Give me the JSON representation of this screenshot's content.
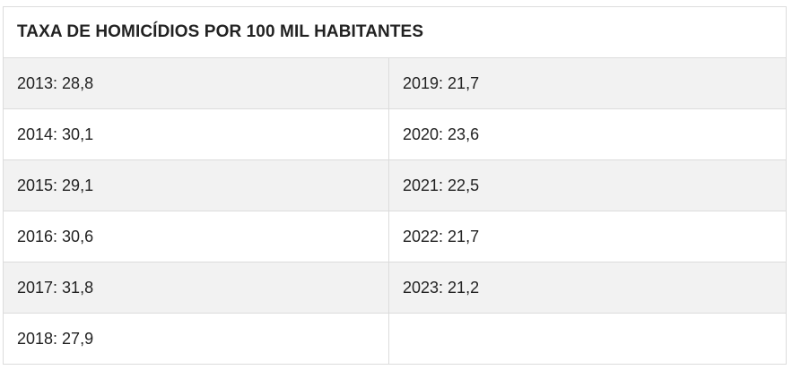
{
  "chart_data": {
    "type": "table",
    "title": "TAXA DE HOMICÍDIOS POR 100 MIL HABITANTES",
    "rows": [
      {
        "left": "2013: 28,8",
        "right": "2019: 21,7"
      },
      {
        "left": "2014: 30,1",
        "right": "2020: 23,6"
      },
      {
        "left": "2015: 29,1",
        "right": "2021: 22,5"
      },
      {
        "left": "2016: 30,6",
        "right": "2022: 21,7"
      },
      {
        "left": "2017: 31,8",
        "right": "2023: 21,2"
      },
      {
        "left": "2018: 27,9",
        "right": ""
      }
    ],
    "x": [
      "2013",
      "2014",
      "2015",
      "2016",
      "2017",
      "2018",
      "2019",
      "2020",
      "2021",
      "2022",
      "2023"
    ],
    "values": [
      28.8,
      30.1,
      29.1,
      30.6,
      31.8,
      27.9,
      21.7,
      23.6,
      22.5,
      21.7,
      21.2
    ]
  },
  "colors": {
    "shaded_row": "#f2f2f2",
    "border": "#dcdcdc",
    "text": "#222222"
  }
}
